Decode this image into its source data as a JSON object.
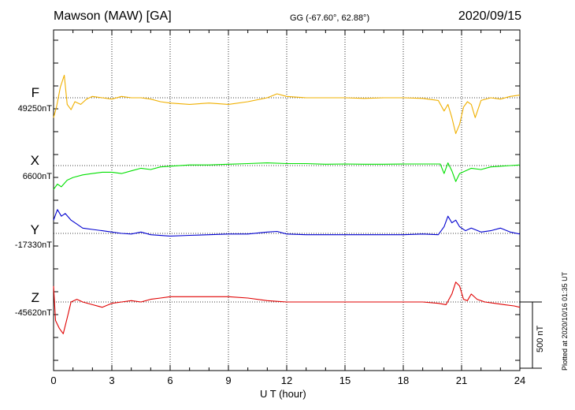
{
  "header": {
    "station": "Mawson (MAW)  [GA]",
    "coords": "GG (-67.60°,  62.88°)",
    "date": "2020/09/15"
  },
  "footer": {
    "plotted": "Plotted at 2020/10/16 01:35 UT"
  },
  "colors": {
    "F": "#f0b000",
    "X": "#00e000",
    "Y": "#0000d0",
    "Z": "#e00000"
  },
  "chart_data": {
    "type": "line",
    "title": "Mawson (MAW)  [GA]",
    "xlabel": "U T (hour)",
    "ylabel": "",
    "xlim": [
      0,
      24
    ],
    "x_ticks": [
      "0",
      "3",
      "6",
      "9",
      "12",
      "15",
      "18",
      "21",
      "24"
    ],
    "grid": true,
    "y_unit": "nT",
    "scale_bar_value_nT": 500,
    "scale_bar_label": "500 nT",
    "series": [
      {
        "name": "F",
        "baseline_label": "49250nT",
        "baseline_nT": 49250,
        "points": [
          [
            0,
            49100
          ],
          [
            0.15,
            49180
          ],
          [
            0.35,
            49330
          ],
          [
            0.55,
            49420
          ],
          [
            0.7,
            49200
          ],
          [
            0.9,
            49160
          ],
          [
            1.1,
            49220
          ],
          [
            1.4,
            49200
          ],
          [
            1.7,
            49240
          ],
          [
            2.0,
            49260
          ],
          [
            2.5,
            49250
          ],
          [
            3.0,
            49240
          ],
          [
            3.5,
            49260
          ],
          [
            4.0,
            49250
          ],
          [
            4.5,
            49250
          ],
          [
            5.0,
            49240
          ],
          [
            5.5,
            49220
          ],
          [
            6.0,
            49210
          ],
          [
            7.0,
            49200
          ],
          [
            8.0,
            49210
          ],
          [
            9.0,
            49200
          ],
          [
            10.0,
            49220
          ],
          [
            11.0,
            49250
          ],
          [
            11.5,
            49280
          ],
          [
            12.0,
            49260
          ],
          [
            13.0,
            49250
          ],
          [
            14.0,
            49250
          ],
          [
            15.0,
            49250
          ],
          [
            16.0,
            49245
          ],
          [
            17.0,
            49250
          ],
          [
            18.0,
            49250
          ],
          [
            19.0,
            49245
          ],
          [
            19.8,
            49230
          ],
          [
            20.1,
            49150
          ],
          [
            20.3,
            49200
          ],
          [
            20.5,
            49100
          ],
          [
            20.7,
            48980
          ],
          [
            20.9,
            49050
          ],
          [
            21.1,
            49180
          ],
          [
            21.3,
            49220
          ],
          [
            21.5,
            49200
          ],
          [
            21.7,
            49100
          ],
          [
            22.0,
            49230
          ],
          [
            22.5,
            49250
          ],
          [
            23.0,
            49240
          ],
          [
            23.5,
            49260
          ],
          [
            24.0,
            49270
          ]
        ]
      },
      {
        "name": "X",
        "baseline_label": "6600nT",
        "baseline_nT": 6600,
        "points": [
          [
            0,
            6420
          ],
          [
            0.2,
            6460
          ],
          [
            0.4,
            6440
          ],
          [
            0.7,
            6490
          ],
          [
            1.0,
            6510
          ],
          [
            1.5,
            6530
          ],
          [
            2.0,
            6540
          ],
          [
            2.5,
            6550
          ],
          [
            3.0,
            6550
          ],
          [
            3.5,
            6540
          ],
          [
            4.0,
            6560
          ],
          [
            4.5,
            6580
          ],
          [
            5.0,
            6570
          ],
          [
            5.5,
            6590
          ],
          [
            6.0,
            6595
          ],
          [
            7.0,
            6605
          ],
          [
            8.0,
            6605
          ],
          [
            9.0,
            6610
          ],
          [
            10.0,
            6615
          ],
          [
            11.0,
            6620
          ],
          [
            12.0,
            6615
          ],
          [
            13.0,
            6615
          ],
          [
            14.0,
            6610
          ],
          [
            15.0,
            6612
          ],
          [
            16.0,
            6610
          ],
          [
            17.0,
            6610
          ],
          [
            18.0,
            6612
          ],
          [
            19.0,
            6612
          ],
          [
            19.9,
            6612
          ],
          [
            20.1,
            6540
          ],
          [
            20.3,
            6620
          ],
          [
            20.5,
            6560
          ],
          [
            20.7,
            6480
          ],
          [
            20.9,
            6540
          ],
          [
            21.2,
            6560
          ],
          [
            21.5,
            6580
          ],
          [
            22.0,
            6570
          ],
          [
            22.5,
            6590
          ],
          [
            23.0,
            6595
          ],
          [
            23.5,
            6600
          ],
          [
            24.0,
            6605
          ]
        ]
      },
      {
        "name": "Y",
        "baseline_label": "-17330nT",
        "baseline_nT": -17330,
        "points": [
          [
            0,
            -17230
          ],
          [
            0.2,
            -17150
          ],
          [
            0.4,
            -17200
          ],
          [
            0.6,
            -17180
          ],
          [
            0.9,
            -17230
          ],
          [
            1.2,
            -17260
          ],
          [
            1.5,
            -17290
          ],
          [
            2.0,
            -17300
          ],
          [
            2.5,
            -17310
          ],
          [
            3.0,
            -17320
          ],
          [
            3.5,
            -17330
          ],
          [
            4.0,
            -17335
          ],
          [
            4.5,
            -17320
          ],
          [
            5.0,
            -17340
          ],
          [
            6.0,
            -17350
          ],
          [
            7.0,
            -17345
          ],
          [
            8.0,
            -17340
          ],
          [
            9.0,
            -17335
          ],
          [
            10.0,
            -17335
          ],
          [
            11.0,
            -17320
          ],
          [
            11.5,
            -17315
          ],
          [
            12.0,
            -17335
          ],
          [
            13.0,
            -17340
          ],
          [
            14.0,
            -17340
          ],
          [
            15.0,
            -17340
          ],
          [
            16.0,
            -17340
          ],
          [
            17.0,
            -17340
          ],
          [
            18.0,
            -17340
          ],
          [
            19.0,
            -17335
          ],
          [
            19.8,
            -17340
          ],
          [
            20.1,
            -17280
          ],
          [
            20.3,
            -17200
          ],
          [
            20.5,
            -17250
          ],
          [
            20.7,
            -17230
          ],
          [
            20.9,
            -17280
          ],
          [
            21.2,
            -17310
          ],
          [
            21.5,
            -17290
          ],
          [
            22.0,
            -17320
          ],
          [
            22.5,
            -17310
          ],
          [
            23.0,
            -17290
          ],
          [
            23.5,
            -17320
          ],
          [
            24.0,
            -17335
          ]
        ]
      },
      {
        "name": "Z",
        "baseline_label": "-45620nT",
        "baseline_nT": -45620,
        "points": [
          [
            0,
            -45500
          ],
          [
            0.1,
            -45760
          ],
          [
            0.3,
            -45820
          ],
          [
            0.5,
            -45860
          ],
          [
            0.7,
            -45740
          ],
          [
            0.9,
            -45620
          ],
          [
            1.2,
            -45600
          ],
          [
            1.5,
            -45620
          ],
          [
            2.0,
            -45640
          ],
          [
            2.5,
            -45660
          ],
          [
            3.0,
            -45630
          ],
          [
            3.5,
            -45620
          ],
          [
            4.0,
            -45610
          ],
          [
            4.5,
            -45620
          ],
          [
            5.0,
            -45600
          ],
          [
            5.5,
            -45590
          ],
          [
            6.0,
            -45580
          ],
          [
            7.0,
            -45580
          ],
          [
            8.0,
            -45580
          ],
          [
            9.0,
            -45580
          ],
          [
            10.0,
            -45590
          ],
          [
            11.0,
            -45610
          ],
          [
            11.5,
            -45615
          ],
          [
            12.0,
            -45620
          ],
          [
            13.0,
            -45620
          ],
          [
            14.0,
            -45620
          ],
          [
            15.0,
            -45620
          ],
          [
            16.0,
            -45620
          ],
          [
            17.0,
            -45620
          ],
          [
            18.0,
            -45620
          ],
          [
            19.0,
            -45620
          ],
          [
            19.8,
            -45630
          ],
          [
            20.2,
            -45640
          ],
          [
            20.5,
            -45560
          ],
          [
            20.7,
            -45470
          ],
          [
            20.9,
            -45500
          ],
          [
            21.1,
            -45600
          ],
          [
            21.3,
            -45610
          ],
          [
            21.5,
            -45560
          ],
          [
            21.8,
            -45600
          ],
          [
            22.2,
            -45620
          ],
          [
            22.7,
            -45630
          ],
          [
            23.2,
            -45640
          ],
          [
            23.7,
            -45650
          ],
          [
            24.0,
            -45660
          ]
        ]
      }
    ]
  }
}
